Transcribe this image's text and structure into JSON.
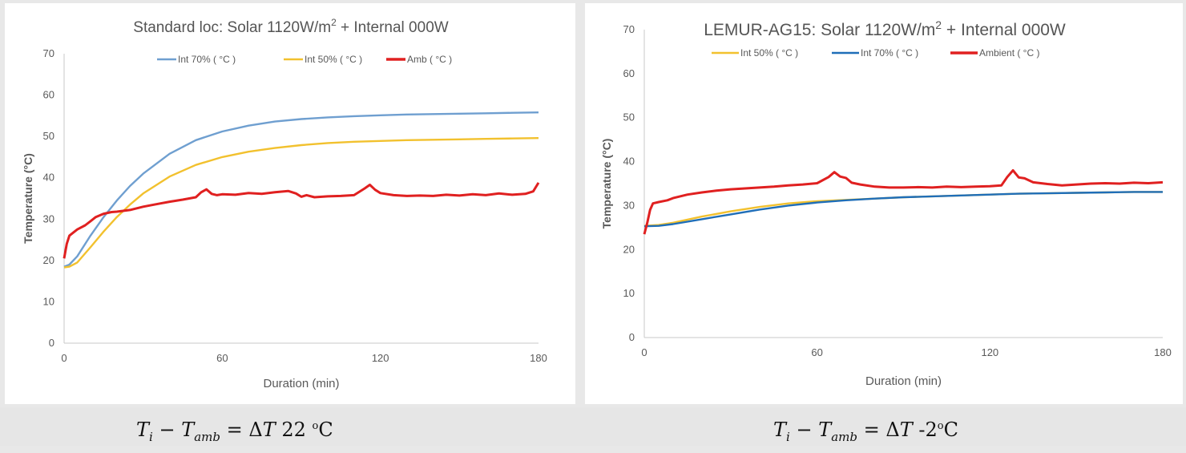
{
  "chart_data": [
    {
      "type": "line",
      "title_prefix": "Standard loc: Solar 1120W/m",
      "title_sup": "2",
      "title_suffix": " + Internal 000W",
      "xlabel": "Duration (min)",
      "ylabel": "Temperature (°C)",
      "xlim": [
        0,
        180
      ],
      "ylim": [
        0,
        70
      ],
      "xticks": [
        0,
        60,
        120,
        180
      ],
      "yticks": [
        0,
        10,
        20,
        30,
        40,
        50,
        60,
        70
      ],
      "grid": false,
      "legend_position": "top",
      "series": [
        {
          "name": "Int 70% ( °C )",
          "color": "#6f9fd0",
          "x": [
            0,
            2,
            5,
            10,
            15,
            20,
            25,
            30,
            40,
            50,
            60,
            70,
            80,
            90,
            100,
            110,
            120,
            130,
            140,
            150,
            160,
            170,
            180
          ],
          "y": [
            18.5,
            19,
            21,
            26,
            30.5,
            34.5,
            38,
            41,
            45.8,
            49.1,
            51.2,
            52.6,
            53.6,
            54.2,
            54.6,
            54.9,
            55.1,
            55.3,
            55.4,
            55.5,
            55.6,
            55.7,
            55.8
          ]
        },
        {
          "name": "Int 50%  ( °C )",
          "color": "#f2c12e",
          "x": [
            0,
            2,
            5,
            10,
            15,
            20,
            25,
            30,
            40,
            50,
            60,
            70,
            80,
            90,
            100,
            110,
            120,
            130,
            140,
            150,
            160,
            170,
            180
          ],
          "y": [
            18.3,
            18.5,
            19.5,
            23.2,
            27,
            30.5,
            33.5,
            36.2,
            40.3,
            43.1,
            45,
            46.3,
            47.2,
            47.9,
            48.4,
            48.7,
            48.9,
            49.1,
            49.2,
            49.3,
            49.4,
            49.5,
            49.6
          ]
        },
        {
          "name": "Amb ( °C )",
          "color": "#e02020",
          "x": [
            0,
            1,
            2,
            3,
            5,
            8,
            10,
            12,
            15,
            18,
            20,
            25,
            30,
            35,
            40,
            45,
            50,
            52,
            54,
            56,
            58,
            60,
            65,
            70,
            75,
            80,
            85,
            88,
            90,
            92,
            95,
            100,
            105,
            110,
            114,
            116,
            118,
            120,
            125,
            130,
            135,
            140,
            145,
            150,
            155,
            160,
            165,
            170,
            175,
            178,
            180
          ],
          "y": [
            20.5,
            24,
            26,
            26.5,
            27.5,
            28.5,
            29.5,
            30.5,
            31.3,
            31.7,
            31.8,
            32.2,
            33,
            33.6,
            34.2,
            34.7,
            35.3,
            36.5,
            37.2,
            36.1,
            35.8,
            36,
            35.9,
            36.3,
            36.1,
            36.5,
            36.8,
            36.2,
            35.4,
            35.8,
            35.3,
            35.5,
            35.6,
            35.8,
            37.4,
            38.3,
            37.1,
            36.3,
            35.8,
            35.6,
            35.7,
            35.6,
            35.9,
            35.7,
            36,
            35.8,
            36.2,
            35.9,
            36.1,
            36.7,
            38.8
          ]
        }
      ]
    },
    {
      "type": "line",
      "title_prefix": "LEMUR-AG15: Solar 1120W/m",
      "title_sup": "2",
      "title_suffix": " + Internal 000W",
      "xlabel": "Duration (min)",
      "ylabel": "Temperature (°C)",
      "xlim": [
        0,
        180
      ],
      "ylim": [
        0,
        70
      ],
      "xticks": [
        0,
        60,
        120,
        180
      ],
      "yticks": [
        0,
        10,
        20,
        30,
        40,
        50,
        60,
        70
      ],
      "grid": false,
      "legend_position": "top",
      "series": [
        {
          "name": "Int 50% ( °C )",
          "color": "#f2c12e",
          "x": [
            0,
            5,
            10,
            20,
            30,
            40,
            50,
            60,
            70,
            80,
            90,
            100,
            110,
            120,
            130,
            140,
            150,
            160,
            170,
            180
          ],
          "y": [
            25.4,
            25.6,
            26.1,
            27.5,
            28.7,
            29.7,
            30.5,
            31,
            31.3,
            31.6,
            31.9,
            32.1,
            32.3,
            32.5,
            32.7,
            32.8,
            32.9,
            33,
            33.1,
            33.1
          ]
        },
        {
          "name": "Int 70% ( °C )",
          "color": "#1f6eb8",
          "x": [
            0,
            5,
            10,
            20,
            30,
            40,
            50,
            60,
            70,
            80,
            90,
            100,
            110,
            120,
            130,
            140,
            150,
            160,
            170,
            180
          ],
          "y": [
            25.3,
            25.4,
            25.8,
            26.9,
            28,
            29.1,
            30,
            30.7,
            31.2,
            31.6,
            31.9,
            32.1,
            32.3,
            32.5,
            32.7,
            32.8,
            32.9,
            33,
            33.1,
            33.1
          ]
        },
        {
          "name": "Ambient ( °C )",
          "color": "#e02020",
          "x": [
            0,
            1,
            2,
            3,
            5,
            8,
            10,
            15,
            20,
            25,
            30,
            35,
            40,
            45,
            50,
            55,
            60,
            64,
            66,
            68,
            70,
            72,
            75,
            80,
            85,
            90,
            95,
            100,
            105,
            110,
            115,
            120,
            124,
            126,
            128,
            130,
            132,
            135,
            140,
            145,
            150,
            155,
            160,
            165,
            170,
            175,
            180
          ],
          "y": [
            23.5,
            26,
            29,
            30.5,
            30.8,
            31.2,
            31.7,
            32.5,
            33,
            33.4,
            33.7,
            33.9,
            34.1,
            34.3,
            34.6,
            34.8,
            35.1,
            36.5,
            37.6,
            36.6,
            36.3,
            35.2,
            34.8,
            34.3,
            34.1,
            34.1,
            34.2,
            34.1,
            34.3,
            34.2,
            34.3,
            34.4,
            34.6,
            36.5,
            38,
            36.4,
            36.2,
            35.3,
            34.9,
            34.6,
            34.8,
            35,
            35.1,
            35,
            35.2,
            35.1,
            35.3
          ]
        }
      ]
    }
  ],
  "formulas": {
    "left": {
      "t": "T",
      "i": "i",
      "minus": " − ",
      "t2": "T",
      "amb": "amb",
      "eq": " = Δ",
      "t3": "T",
      "value": " 22 ",
      "unit_o": "o",
      "unit_c": "C"
    },
    "right": {
      "t": "T",
      "i": "i",
      "minus": " − ",
      "t2": "T",
      "amb": "amb",
      "eq": " = Δ",
      "t3": "T",
      "value": " -2",
      "unit_o": "o",
      "unit_c": "C"
    }
  }
}
